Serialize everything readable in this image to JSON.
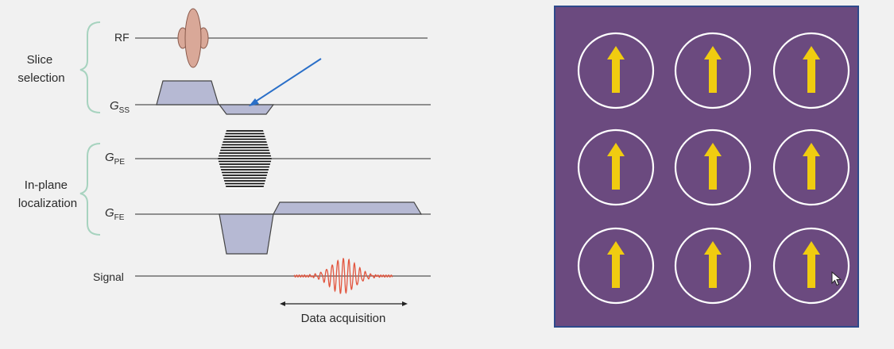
{
  "groups": {
    "slice_selection": [
      "Slice",
      "selection"
    ],
    "in_plane_localization": [
      "In-plane",
      "localization"
    ]
  },
  "channels": {
    "rf": "RF",
    "gss": {
      "main": "G",
      "sub": "SS"
    },
    "gpe": {
      "main": "G",
      "sub": "PE"
    },
    "gfe": {
      "main": "G",
      "sub": "FE"
    },
    "signal": "Signal"
  },
  "data_acquisition_label": "Data acquisition",
  "spin_grid": {
    "rows": 3,
    "cols": 3,
    "direction": "up"
  },
  "colors": {
    "panel_background": "#6b4a7f",
    "panel_border": "#2e4a8c",
    "arrow_yellow": "#f0cc10",
    "circle_white": "#ffffff",
    "gradient_fill": "#b6b9d3",
    "rf_pulse": "#d9a898",
    "signal_red": "#e2553e",
    "pointer_blue": "#2a6fc8",
    "brace_green": "#a7d3bf"
  }
}
